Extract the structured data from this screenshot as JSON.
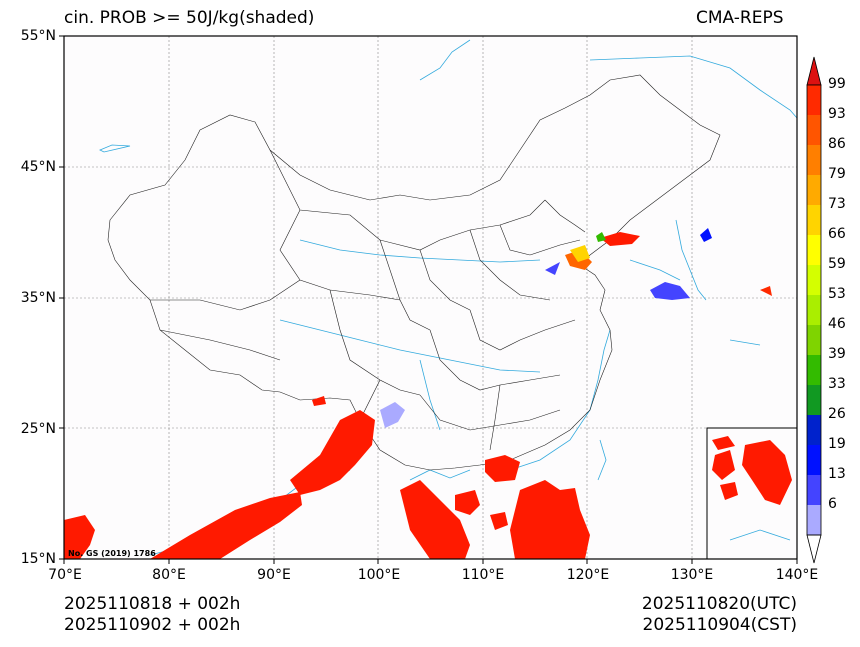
{
  "header": {
    "title_left": "cin. PROB >= 50J/kg(shaded)",
    "title_right": "CMA-REPS"
  },
  "axes": {
    "lat_labels": [
      "55°N",
      "45°N",
      "35°N",
      "25°N",
      "15°N"
    ],
    "lon_labels": [
      "70°E",
      "80°E",
      "90°E",
      "100°E",
      "110°E",
      "120°E",
      "130°E",
      "140°E"
    ]
  },
  "map_note": "No. GS (2019) 1786",
  "colorbar": {
    "labels": [
      "99",
      "93",
      "86",
      "79",
      "73",
      "66",
      "59",
      "53",
      "46",
      "39",
      "33",
      "26",
      "19",
      "13",
      "6"
    ],
    "colors": [
      "#ff2a00",
      "#ff5500",
      "#ff7f00",
      "#ffaa00",
      "#ffd400",
      "#ffff00",
      "#d4ff00",
      "#aaee00",
      "#7fd400",
      "#33bb00",
      "#119922",
      "#0022cc",
      "#0011ff",
      "#4444ff",
      "#aaaaff"
    ],
    "over_color": "#dd1111",
    "under_color": "#ffffff"
  },
  "footer": {
    "init_utc": "2025110818  +  002h",
    "init_cst": "2025110902  +  002h",
    "valid_utc": "2025110820(UTC)",
    "valid_cst": "2025110904(CST)"
  }
}
